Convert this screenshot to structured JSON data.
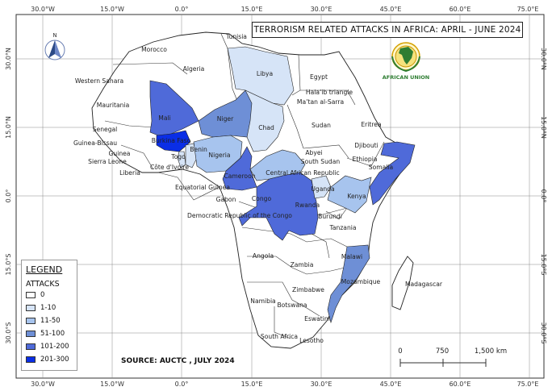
{
  "title": "TERRORISM RELATED ATTACKS IN AFRICA: APRIL - JUNE 2024",
  "logo": {
    "text": "AFRICAN UNION"
  },
  "source": "SOURCE: AUCTC , JULY 2024",
  "north_arrow": {
    "label": "N"
  },
  "graticule": {
    "top_longitudes": [
      "30.0°W",
      "15.0°W",
      "0.0°",
      "15.0°E",
      "30.0°E",
      "45.0°E",
      "60.0°E",
      "75.0°E"
    ],
    "bottom_longitudes": [
      "30.0°W",
      "15.0°W",
      "0.0°",
      "15.0°E",
      "30.0°E",
      "45.0°E",
      "60.0°E",
      "75.0°E"
    ],
    "left_latitudes": [
      "30.0°N",
      "15.0°N",
      "0.0°",
      "15.0°S",
      "30.0°S"
    ],
    "right_latitudes": [
      "30.0°N",
      "15.0°N",
      "0.0°",
      "15.0°S",
      "30.0°S"
    ]
  },
  "legend": {
    "title": "LEGEND",
    "subtitle": "ATTACKS",
    "classes": [
      {
        "label": "0",
        "color": "#ffffff"
      },
      {
        "label": "1-10",
        "color": "#d6e4f7"
      },
      {
        "label": "11-50",
        "color": "#a7c4ee"
      },
      {
        "label": "51-100",
        "color": "#6e8fd6"
      },
      {
        "label": "101-200",
        "color": "#4f6ad9"
      },
      {
        "label": "201-300",
        "color": "#0a2ee6"
      }
    ]
  },
  "scale_bar": {
    "labels": [
      "0",
      "750",
      "1,500 km"
    ]
  },
  "country_labels": [
    "Tunisia",
    "Morocco",
    "Algeria",
    "Libya",
    "Egypt",
    "Western Sahara",
    "Mauritania",
    "Halaʼib triangle",
    "Maʼtan al-Sarra",
    "Mali",
    "Niger",
    "Chad",
    "Sudan",
    "Eritrea",
    "Senegal",
    "Guinea-Bissau",
    "Guinea",
    "Sierra Leone",
    "Liberia",
    "Burkina Faso",
    "Togo",
    "Côte d'Ivoire",
    "Benin",
    "Nigeria",
    "Djibouti",
    "Ethiopia",
    "Somalia",
    "Abyei",
    "South Sudan",
    "Central African Republic",
    "Cameroon",
    "Equatorial Guinea",
    "Gabon",
    "Congo",
    "Uganda",
    "Kenya",
    "Rwanda",
    "Burundi",
    "Democratic Republic of the Congo",
    "Tanzania",
    "Angola",
    "Zambia",
    "Malawi",
    "Mozambique",
    "Zimbabwe",
    "Namibia",
    "Botswana",
    "Madagascar",
    "Eswatini",
    "South Africa",
    "Lesotho"
  ],
  "attack_classes": {
    "Libya": "1-10",
    "Chad": "1-10",
    "Togo": "1-10",
    "Benin": "1-10",
    "Uganda": "1-10",
    "Nigeria": "11-50",
    "Central African Republic": "11-50",
    "Kenya": "11-50",
    "Niger": "51-100",
    "Mozambique": "51-100",
    "Mali": "101-200",
    "Cameroon": "101-200",
    "Somalia": "101-200",
    "Democratic Republic of the Congo": "101-200",
    "Burkina Faso": "201-300"
  }
}
